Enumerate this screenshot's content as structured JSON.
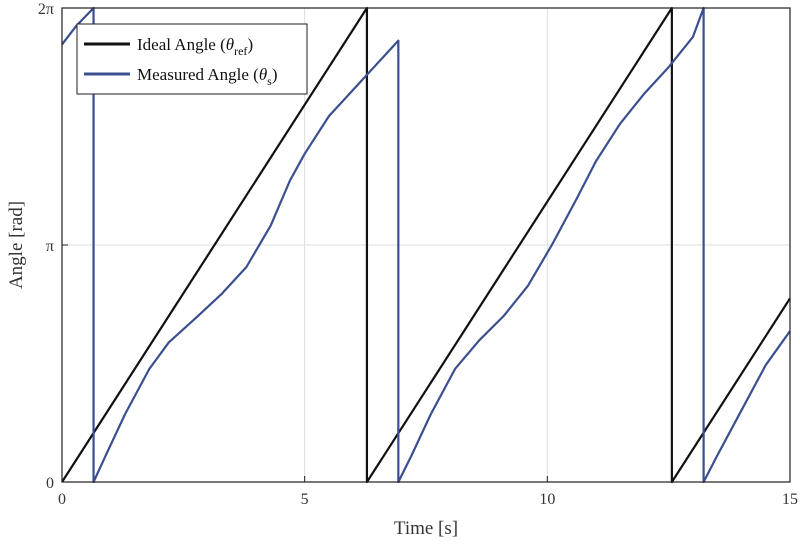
{
  "chart_data": {
    "type": "line",
    "xlabel": "Time [s]",
    "ylabel": "Angle [rad]",
    "xlim": [
      0,
      15
    ],
    "ylim": [
      0,
      6.2832
    ],
    "grid": true,
    "legend_position": "top-left",
    "x_ticks": [
      {
        "value": 0,
        "label": "0"
      },
      {
        "value": 5,
        "label": "5"
      },
      {
        "value": 10,
        "label": "10"
      },
      {
        "value": 15,
        "label": "15"
      }
    ],
    "y_ticks": [
      {
        "value": 0,
        "label": "0"
      },
      {
        "value": 3.1416,
        "label": "π"
      },
      {
        "value": 6.2832,
        "label": "2π"
      }
    ],
    "series": [
      {
        "name": "Ideal Angle (θref)",
        "legend_main": "Ideal Angle (",
        "legend_symbol": "θ",
        "legend_sub": "ref",
        "legend_close": ")",
        "color": "#111111",
        "x": [
          0,
          6.283,
          6.283,
          12.566,
          12.566,
          15
        ],
        "y": [
          0,
          6.283,
          0,
          6.283,
          0,
          2.434
        ]
      },
      {
        "name": "Measured Angle (θs)",
        "legend_main": "Measured Angle (",
        "legend_symbol": "θ",
        "legend_sub": "s",
        "legend_close": ")",
        "color": "#3b4f8f",
        "x": [
          0,
          0.3,
          0.65,
          0.65,
          0.9,
          1.3,
          1.8,
          2.2,
          2.8,
          3.3,
          3.8,
          4.3,
          4.7,
          5.0,
          5.5,
          6.0,
          6.5,
          6.93,
          6.93,
          7.2,
          7.6,
          8.1,
          8.6,
          9.1,
          9.6,
          10.1,
          10.6,
          11.0,
          11.5,
          12.0,
          12.5,
          13.0,
          13.22,
          13.22,
          13.5,
          14.0,
          14.5,
          15.0
        ],
        "y": [
          5.8,
          6.05,
          6.283,
          0,
          0.35,
          0.9,
          1.5,
          1.85,
          2.2,
          2.5,
          2.85,
          3.4,
          4.0,
          4.35,
          4.85,
          5.2,
          5.55,
          5.85,
          0,
          0.35,
          0.9,
          1.5,
          1.88,
          2.2,
          2.6,
          3.15,
          3.75,
          4.25,
          4.75,
          5.15,
          5.5,
          5.9,
          6.283,
          0,
          0.35,
          0.95,
          1.55,
          2.0
        ]
      }
    ]
  }
}
